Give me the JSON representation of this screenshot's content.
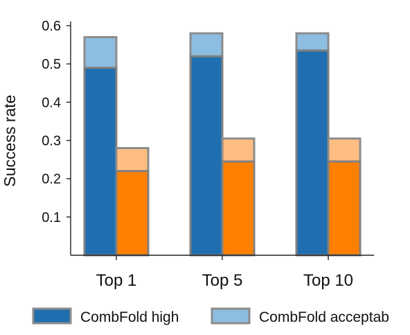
{
  "chart_data": {
    "type": "bar",
    "stacked_overlay": true,
    "categories": [
      "Top 1",
      "Top 5",
      "Top 10"
    ],
    "ylabel": "Success rate",
    "xlabel": "",
    "ylim": [
      0,
      0.6
    ],
    "yticks": [
      "0.1",
      "0.2",
      "0.3",
      "0.4",
      "0.5",
      "0.6"
    ],
    "grid": false,
    "legend_position": "bottom",
    "series": [
      {
        "name": "CombFold high",
        "group": "CombFold",
        "values": [
          0.49,
          0.52,
          0.535
        ],
        "color": "#1f6fb0"
      },
      {
        "name": "CombFold acceptable",
        "group": "CombFold",
        "values": [
          0.57,
          0.58,
          0.58
        ],
        "color": "#8dbde0"
      },
      {
        "name": "",
        "group": "Other",
        "values": [
          0.22,
          0.245,
          0.245
        ],
        "color": "#ff8000"
      },
      {
        "name": "",
        "group": "Other",
        "values": [
          0.28,
          0.305,
          0.305
        ],
        "color": "#ffbd82"
      }
    ],
    "legend": [
      {
        "label": "CombFold high",
        "color": "#1f6fb0"
      },
      {
        "label": "CombFold acceptab",
        "color": "#8dbde0"
      }
    ]
  }
}
